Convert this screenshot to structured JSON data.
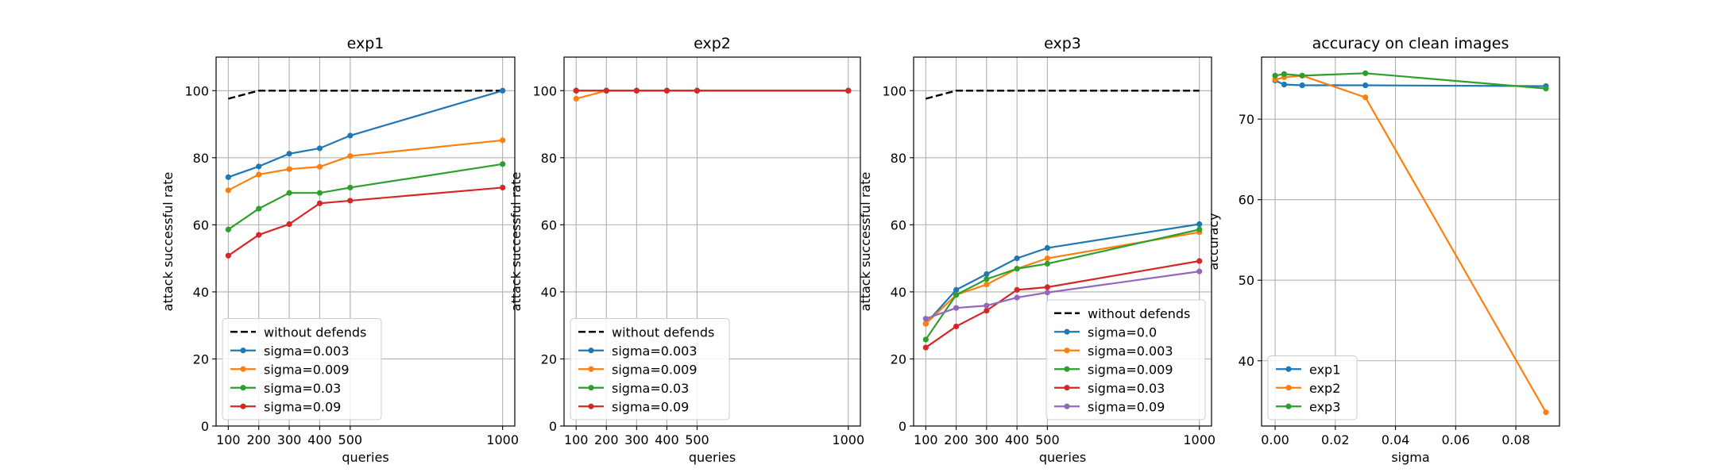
{
  "chart_data": [
    {
      "type": "line",
      "title": "exp1",
      "xlabel": "queries",
      "ylabel": "attack successful rate",
      "xlim": [
        60,
        1040
      ],
      "ylim": [
        0,
        110
      ],
      "xticks": [
        100,
        200,
        300,
        400,
        500,
        1000
      ],
      "yticks": [
        0,
        20,
        40,
        60,
        80,
        100
      ],
      "grid": true,
      "legend_position": "lower-left",
      "series": [
        {
          "name": "without defends",
          "color": "#000000",
          "dashed": true,
          "markers": false,
          "x": [
            100,
            200,
            300,
            400,
            500,
            1000
          ],
          "y": [
            97.6,
            100,
            100,
            100,
            100,
            100
          ]
        },
        {
          "name": "sigma=0.003",
          "color": "#1f77b4",
          "x": [
            100,
            200,
            300,
            400,
            500,
            1000
          ],
          "y": [
            74.2,
            77.4,
            81.2,
            82.8,
            86.6,
            100
          ]
        },
        {
          "name": "sigma=0.009",
          "color": "#ff7f0e",
          "x": [
            100,
            200,
            300,
            400,
            500,
            1000
          ],
          "y": [
            70.3,
            75.0,
            76.6,
            77.3,
            80.5,
            85.2
          ]
        },
        {
          "name": "sigma=0.03",
          "color": "#2ca02c",
          "x": [
            100,
            200,
            300,
            400,
            500,
            1000
          ],
          "y": [
            58.6,
            64.8,
            69.5,
            69.5,
            71.1,
            78.1
          ]
        },
        {
          "name": "sigma=0.09",
          "color": "#d62728",
          "x": [
            100,
            200,
            300,
            400,
            500,
            1000
          ],
          "y": [
            50.8,
            57.0,
            60.2,
            66.4,
            67.2,
            71.1
          ]
        }
      ]
    },
    {
      "type": "line",
      "title": "exp2",
      "xlabel": "queries",
      "ylabel": "attack successful rate",
      "xlim": [
        60,
        1040
      ],
      "ylim": [
        0,
        110
      ],
      "xticks": [
        100,
        200,
        300,
        400,
        500,
        1000
      ],
      "yticks": [
        0,
        20,
        40,
        60,
        80,
        100
      ],
      "grid": true,
      "legend_position": "lower-left",
      "series": [
        {
          "name": "without defends",
          "color": "#000000",
          "dashed": true,
          "markers": false,
          "x": [
            100,
            200,
            300,
            400,
            500,
            1000
          ],
          "y": [
            100,
            100,
            100,
            100,
            100,
            100
          ]
        },
        {
          "name": "sigma=0.003",
          "color": "#1f77b4",
          "x": [
            100,
            200,
            300,
            400,
            500,
            1000
          ],
          "y": [
            100,
            100,
            100,
            100,
            100,
            100
          ]
        },
        {
          "name": "sigma=0.009",
          "color": "#ff7f0e",
          "x": [
            100,
            200,
            300,
            400,
            500,
            1000
          ],
          "y": [
            97.6,
            100,
            100,
            100,
            100,
            100
          ]
        },
        {
          "name": "sigma=0.03",
          "color": "#2ca02c",
          "x": [
            100,
            200,
            300,
            400,
            500,
            1000
          ],
          "y": [
            100,
            100,
            100,
            100,
            100,
            100
          ]
        },
        {
          "name": "sigma=0.09",
          "color": "#d62728",
          "x": [
            100,
            200,
            300,
            400,
            500,
            1000
          ],
          "y": [
            100,
            100,
            100,
            100,
            100,
            100
          ]
        }
      ]
    },
    {
      "type": "line",
      "title": "exp3",
      "xlabel": "queries",
      "ylabel": "attack successful rate",
      "xlim": [
        60,
        1040
      ],
      "ylim": [
        0,
        110
      ],
      "xticks": [
        100,
        200,
        300,
        400,
        500,
        1000
      ],
      "yticks": [
        0,
        20,
        40,
        60,
        80,
        100
      ],
      "grid": true,
      "legend_position": "lower-right",
      "series": [
        {
          "name": "without defends",
          "color": "#000000",
          "dashed": true,
          "markers": false,
          "x": [
            100,
            200,
            300,
            400,
            500,
            1000
          ],
          "y": [
            97.6,
            100,
            100,
            100,
            100,
            100
          ]
        },
        {
          "name": "sigma=0.0",
          "color": "#1f77b4",
          "x": [
            100,
            200,
            300,
            400,
            500,
            1000
          ],
          "y": [
            30.5,
            40.6,
            45.3,
            50.0,
            53.1,
            60.2
          ]
        },
        {
          "name": "sigma=0.003",
          "color": "#ff7f0e",
          "x": [
            100,
            200,
            300,
            400,
            500,
            1000
          ],
          "y": [
            30.5,
            39.1,
            42.2,
            46.9,
            50.0,
            57.8
          ]
        },
        {
          "name": "sigma=0.009",
          "color": "#2ca02c",
          "x": [
            100,
            200,
            300,
            400,
            500,
            1000
          ],
          "y": [
            25.8,
            39.1,
            43.8,
            46.9,
            48.4,
            58.6
          ]
        },
        {
          "name": "sigma=0.03",
          "color": "#d62728",
          "x": [
            100,
            200,
            300,
            400,
            500,
            1000
          ],
          "y": [
            23.4,
            29.7,
            34.4,
            40.6,
            41.4,
            49.2
          ]
        },
        {
          "name": "sigma=0.09",
          "color": "#9467bd",
          "x": [
            100,
            200,
            300,
            400,
            500,
            1000
          ],
          "y": [
            32.0,
            35.2,
            35.9,
            38.3,
            39.8,
            46.1
          ]
        }
      ]
    },
    {
      "type": "line",
      "title": "accuracy on clean images",
      "xlabel": "sigma",
      "ylabel": "accuracy",
      "xlim": [
        -0.0045,
        0.0945
      ],
      "ylim": [
        31.9,
        77.7
      ],
      "xticks": [
        0.0,
        0.02,
        0.04,
        0.06,
        0.08
      ],
      "xtick_labels": [
        "0.00",
        "0.02",
        "0.04",
        "0.06",
        "0.08"
      ],
      "yticks": [
        40,
        50,
        60,
        70
      ],
      "grid": true,
      "legend_position": "lower-left",
      "series": [
        {
          "name": "exp1",
          "color": "#1f77b4",
          "x": [
            0.0,
            0.003,
            0.009,
            0.03,
            0.09
          ],
          "y": [
            74.8,
            74.3,
            74.2,
            74.2,
            74.1
          ]
        },
        {
          "name": "exp2",
          "color": "#ff7f0e",
          "x": [
            0.0,
            0.003,
            0.009,
            0.03,
            0.09
          ],
          "y": [
            74.9,
            75.2,
            75.4,
            72.7,
            33.6
          ]
        },
        {
          "name": "exp3",
          "color": "#2ca02c",
          "x": [
            0.0,
            0.003,
            0.009,
            0.03,
            0.09
          ],
          "y": [
            75.4,
            75.6,
            75.4,
            75.7,
            73.8
          ]
        }
      ]
    }
  ]
}
